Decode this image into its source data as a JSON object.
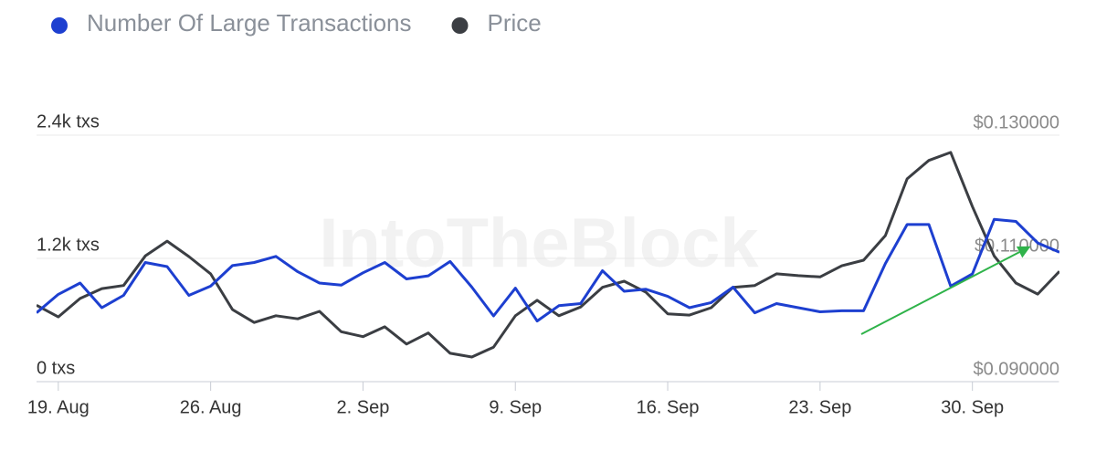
{
  "chart_data": {
    "type": "line",
    "watermark": "IntoTheBlock",
    "legend": "top-left",
    "grid": true,
    "categories": [
      null,
      "19. Aug",
      null,
      null,
      null,
      null,
      null,
      null,
      "26. Aug",
      null,
      null,
      null,
      null,
      null,
      null,
      "2. Sep",
      null,
      null,
      null,
      null,
      null,
      null,
      "9. Sep",
      null,
      null,
      null,
      null,
      null,
      null,
      "16. Sep",
      null,
      null,
      null,
      null,
      null,
      null,
      "23. Sep",
      null,
      null,
      null,
      null,
      null,
      null,
      "30. Sep",
      null,
      null,
      null,
      null
    ],
    "ylim": [
      0,
      2400
    ],
    "yticks": [
      {
        "value": 0,
        "label": "0 txs"
      },
      {
        "value": 1200,
        "label": "1.2k txs"
      },
      {
        "value": 2400,
        "label": "2.4k txs"
      }
    ],
    "y2lim": [
      0.09,
      0.13
    ],
    "y2ticks": [
      {
        "value": 0.09,
        "label": "$0.090000"
      },
      {
        "value": 0.11,
        "label": "$0.110000"
      },
      {
        "value": 0.13,
        "label": "$0.130000"
      }
    ],
    "series": [
      {
        "name": "Number Of Large Transactions",
        "color": "#1d3fd0",
        "axis": "y",
        "values": [
          670,
          850,
          960,
          720,
          840,
          1160,
          1120,
          840,
          930,
          1130,
          1160,
          1220,
          1070,
          960,
          940,
          1060,
          1160,
          1000,
          1030,
          1170,
          920,
          640,
          910,
          590,
          740,
          760,
          1080,
          880,
          900,
          830,
          720,
          770,
          920,
          670,
          760,
          720,
          680,
          690,
          690,
          1150,
          1530,
          1530,
          930,
          1050,
          1580,
          1560,
          1350,
          1260
        ]
      },
      {
        "name": "Price",
        "color": "#3b3e43",
        "axis": "y2",
        "values": [
          0.1024,
          0.1005,
          0.1035,
          0.1051,
          0.1056,
          0.1104,
          0.1128,
          0.1103,
          0.1075,
          0.1017,
          0.0996,
          0.1007,
          0.1002,
          0.1014,
          0.0981,
          0.0973,
          0.0989,
          0.0961,
          0.0979,
          0.0946,
          0.094,
          0.0956,
          0.1007,
          0.1032,
          0.1007,
          0.1021,
          0.1053,
          0.1063,
          0.1045,
          0.101,
          0.1008,
          0.102,
          0.1053,
          0.1056,
          0.1075,
          0.1072,
          0.107,
          0.1088,
          0.1097,
          0.1137,
          0.1229,
          0.1259,
          0.1272,
          0.1184,
          0.1104,
          0.106,
          0.1042,
          0.1079
        ]
      }
    ]
  }
}
